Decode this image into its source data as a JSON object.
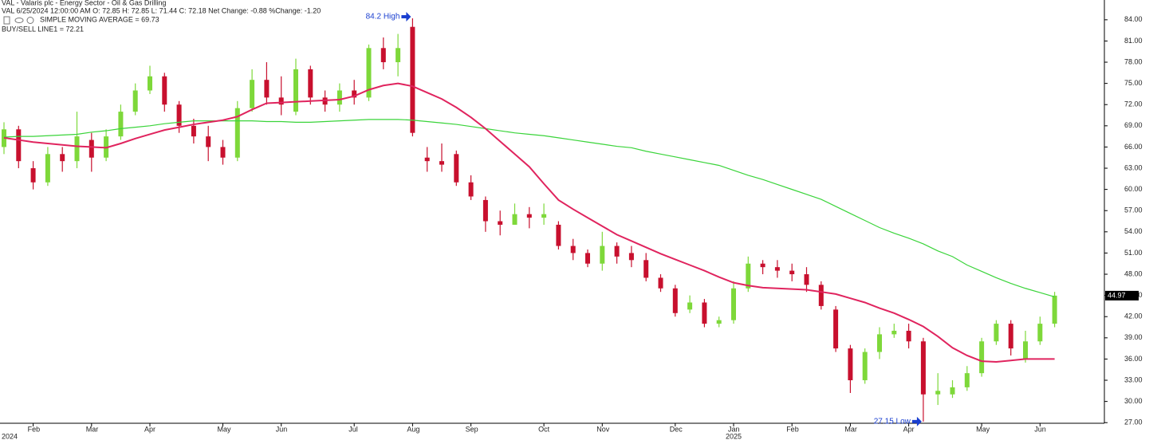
{
  "header": {
    "title": "VAL - Valaris plc - Energy Sector - Oil & Gas Drilling",
    "info": "VAL 6/25/2024 12:00:00 AM O: 72.85 H: 72.85 L: 71.44 C: 72.18 Net Change: -0.88 %Change: -1.20"
  },
  "chart_data": {
    "type": "candlestick",
    "categories": [
      null,
      null,
      "Feb",
      null,
      null,
      null,
      "Mar",
      null,
      null,
      null,
      "Apr",
      null,
      null,
      null,
      null,
      "May",
      null,
      null,
      null,
      "Jun",
      null,
      null,
      null,
      null,
      "Jul",
      null,
      null,
      null,
      "Aug",
      null,
      null,
      null,
      "Sep",
      null,
      null,
      null,
      null,
      "Oct",
      null,
      null,
      null,
      "Nov",
      null,
      null,
      null,
      null,
      "Dec",
      null,
      null,
      null,
      "Jan",
      null,
      null,
      null,
      "Feb",
      null,
      null,
      null,
      "Mar",
      null,
      null,
      null,
      "Apr",
      null,
      null,
      null,
      null,
      "May",
      null,
      null,
      null,
      "Jun",
      null
    ],
    "year_labels": [
      "2024",
      "2025"
    ],
    "open": [
      66,
      68.5,
      63,
      61,
      65,
      64,
      67,
      64.5,
      67.5,
      71,
      74,
      76,
      72,
      69,
      67.5,
      66,
      64.5,
      71.5,
      75.5,
      73,
      71,
      77,
      73,
      72,
      74,
      73,
      80,
      78,
      83,
      64.5,
      64,
      65,
      61,
      58.5,
      55.5,
      55,
      56.5,
      56,
      55,
      52,
      51,
      49.5,
      52,
      51,
      50,
      47.5,
      46,
      43,
      44,
      41,
      41.5,
      46,
      49.5,
      49,
      48.5,
      48,
      46.5,
      43,
      37.5,
      33,
      37,
      39.5,
      40,
      38.5,
      31,
      31,
      32,
      34,
      38.5,
      41,
      36,
      38.5,
      41
    ],
    "high": [
      69.5,
      69,
      64,
      66,
      66,
      71,
      68,
      68.5,
      72,
      75,
      77.5,
      76.5,
      72.5,
      70,
      69,
      67,
      72.5,
      77,
      78,
      76,
      78.5,
      77.5,
      74,
      75,
      75.5,
      80.5,
      81.5,
      82,
      84.2,
      66,
      66.5,
      65.5,
      62,
      59,
      57,
      58,
      57.5,
      58,
      55.5,
      53,
      51.5,
      54,
      52.5,
      52,
      51,
      48,
      46.5,
      45,
      44.5,
      42,
      47,
      50.5,
      50,
      50,
      49.5,
      49,
      47,
      43.5,
      38,
      37.5,
      40.5,
      41,
      41,
      39,
      34,
      33,
      35,
      39,
      41.5,
      41.5,
      40,
      42,
      45.5
    ],
    "low": [
      65,
      63,
      60,
      60.5,
      62.5,
      63,
      62.5,
      64,
      67,
      70.5,
      73.5,
      71,
      68,
      66.5,
      64,
      63.5,
      64,
      71,
      72,
      70.5,
      70.5,
      72,
      71,
      71,
      72,
      72.5,
      77,
      76,
      67.5,
      62.5,
      62.5,
      60.5,
      58.5,
      54,
      53.5,
      55,
      54.5,
      55,
      51.5,
      50,
      49,
      48.5,
      49.5,
      49,
      47,
      45.5,
      42,
      42.5,
      40.5,
      40.5,
      41,
      45.5,
      48,
      47.5,
      47,
      45.5,
      43,
      37,
      31.2,
      32.5,
      36,
      39,
      37.5,
      27.15,
      29.5,
      30.5,
      31.5,
      33.5,
      38,
      36.5,
      35.5,
      38,
      40.5
    ],
    "close": [
      68.5,
      64,
      61,
      65,
      64,
      67.5,
      64.5,
      67.5,
      71,
      74,
      76,
      72,
      69,
      67.5,
      66,
      64.5,
      71.5,
      75.5,
      73,
      72,
      77,
      73,
      72,
      74,
      73,
      80,
      78,
      80,
      68,
      64,
      63.5,
      61,
      59,
      55.5,
      55,
      56.5,
      56,
      56.5,
      52,
      51,
      49.5,
      52,
      50.5,
      50,
      47.5,
      46,
      42.5,
      44,
      41,
      41.5,
      46,
      49.5,
      49,
      48.5,
      48,
      46.5,
      43.5,
      37.5,
      33,
      37,
      39.5,
      40,
      38.5,
      31,
      31.5,
      32,
      34,
      38.5,
      41,
      37.5,
      38.5,
      41,
      44.97
    ],
    "up_color": "#7ed83a",
    "down_color": "#c8102e",
    "series": [
      {
        "name": "SIMPLE MOVING AVERAGE = 69.73",
        "color": "#3ad43a",
        "values": [
          67.4,
          67.5,
          67.5,
          67.6,
          67.7,
          67.8,
          68.1,
          68.3,
          68.6,
          68.8,
          69.0,
          69.3,
          69.5,
          69.7,
          69.7,
          69.7,
          69.7,
          69.7,
          69.6,
          69.6,
          69.5,
          69.5,
          69.6,
          69.7,
          69.8,
          69.9,
          69.9,
          69.9,
          69.8,
          69.6,
          69.4,
          69.2,
          68.9,
          68.6,
          68.3,
          68.0,
          67.8,
          67.6,
          67.3,
          67.0,
          66.7,
          66.4,
          66.1,
          65.9,
          65.4,
          65.0,
          64.6,
          64.2,
          63.8,
          63.4,
          62.7,
          62.0,
          61.4,
          60.7,
          60.0,
          59.3,
          58.6,
          57.6,
          56.6,
          55.6,
          54.6,
          53.8,
          53.1,
          52.3,
          51.3,
          50.5,
          49.3,
          48.4,
          47.5,
          46.7,
          46.0,
          45.4,
          44.8
        ]
      },
      {
        "name": "BUY/SELL LINE1 = 72.21",
        "color": "#e0245e",
        "values": [
          67.3,
          67.0,
          66.7,
          66.5,
          66.3,
          66.1,
          66.0,
          65.9,
          66.5,
          67.2,
          67.8,
          68.4,
          68.8,
          69.2,
          69.5,
          69.8,
          70.3,
          71.3,
          72.2,
          72.3,
          72.4,
          72.5,
          72.6,
          72.7,
          73.2,
          74.1,
          74.7,
          75.0,
          74.6,
          73.7,
          72.8,
          71.6,
          70.2,
          68.6,
          66.8,
          65.0,
          63.2,
          60.8,
          58.5,
          57.2,
          56.0,
          54.8,
          53.6,
          52.7,
          51.8,
          50.9,
          50.1,
          49.3,
          48.5,
          47.6,
          46.8,
          46.4,
          46.1,
          46.0,
          45.9,
          45.8,
          45.5,
          45.2,
          44.6,
          44.0,
          43.2,
          42.5,
          41.6,
          40.6,
          39.2,
          37.6,
          36.5,
          35.7,
          35.6,
          35.8,
          36.0,
          36.0,
          36.0
        ]
      }
    ],
    "annotations": [
      {
        "text": "84.2 High",
        "value": 84.2
      },
      {
        "text": "27.15 Low",
        "value": 27.15
      }
    ],
    "annotation_color": "#1a3fd0",
    "last_price": 44.97,
    "ylim": [
      26.8,
      86.8
    ],
    "yticks": [
      {
        "value": 27,
        "label": "27.00"
      },
      {
        "value": 30,
        "label": "30.00"
      },
      {
        "value": 33,
        "label": "33.00"
      },
      {
        "value": 36,
        "label": "36.00"
      },
      {
        "value": 39,
        "label": "39.00"
      },
      {
        "value": 42,
        "label": "42.00"
      },
      {
        "value": 45,
        "label": "45.00"
      },
      {
        "value": 48,
        "label": "48.00"
      },
      {
        "value": 51,
        "label": "51.00"
      },
      {
        "value": 54,
        "label": "54.00"
      },
      {
        "value": 57,
        "label": "57.00"
      },
      {
        "value": 60,
        "label": "60.00"
      },
      {
        "value": 63,
        "label": "63.00"
      },
      {
        "value": 66,
        "label": "66.00"
      },
      {
        "value": 69,
        "label": "69.00"
      },
      {
        "value": 72,
        "label": "72.00"
      },
      {
        "value": 75,
        "label": "75.00"
      },
      {
        "value": 78,
        "label": "78.00"
      },
      {
        "value": 81,
        "label": "81.00"
      },
      {
        "value": 84,
        "label": "84.00"
      }
    ],
    "grid": false
  }
}
